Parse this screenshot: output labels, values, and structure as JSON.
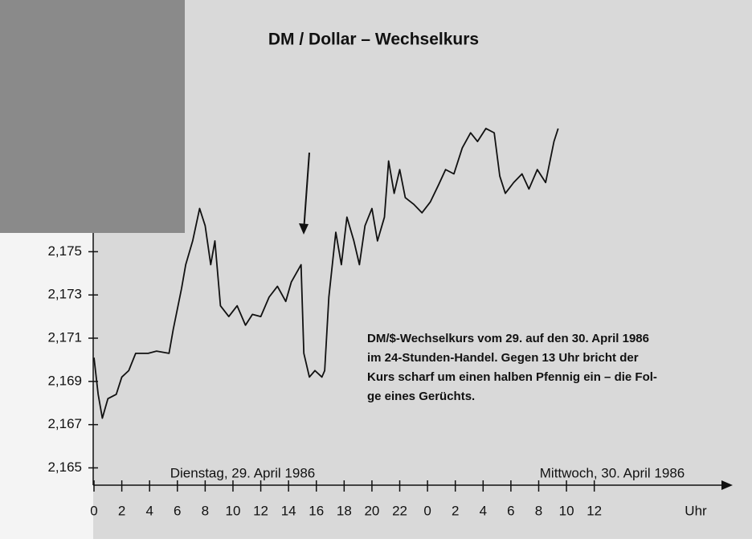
{
  "chart_data": {
    "type": "line",
    "title": "DM / Dollar – Wechselkurs",
    "x_label": "Uhr",
    "annotations": [
      "Dienstag, 29. April 1986",
      "Mittwoch, 30. April 1986"
    ],
    "caption": [
      "DM/$-Wechselkurs vom 29. auf den 30. April 1986",
      "im 24-Stunden-Handel. Gegen 13 Uhr bricht der",
      "Kurs scharf um einen halben Pfennig ein – die Fol-",
      "ge eines Gerüchts."
    ],
    "color": "#111111",
    "xlim": [
      0,
      45.5
    ],
    "ylim": [
      2.1642,
      2.182
    ],
    "xticks": [
      0,
      2,
      4,
      6,
      8,
      10,
      12,
      14,
      16,
      18,
      20,
      22,
      {
        "value": 24,
        "label": "0"
      },
      {
        "value": 26,
        "label": "2"
      },
      {
        "value": 28,
        "label": "4"
      },
      {
        "value": 30,
        "label": "6"
      },
      {
        "value": 32,
        "label": "8"
      },
      {
        "value": 34,
        "label": "10"
      },
      {
        "value": 36,
        "label": "12"
      }
    ],
    "yticks": [
      {
        "value": 2.165,
        "label": "2,165"
      },
      {
        "value": 2.167,
        "label": "2,167"
      },
      {
        "value": 2.169,
        "label": "2,169"
      },
      {
        "value": 2.171,
        "label": "2,171"
      },
      {
        "value": 2.173,
        "label": "2,173"
      },
      {
        "value": 2.175,
        "label": "2,175"
      }
    ],
    "x": [
      0,
      0.3,
      0.6,
      1.0,
      1.6,
      2.0,
      2.5,
      3.0,
      3.4,
      3.9,
      4.5,
      5.4,
      5.7,
      6.3,
      6.6,
      7.1,
      7.6,
      8.0,
      8.4,
      8.7,
      9.1,
      9.7,
      10.3,
      10.9,
      11.4,
      12.0,
      12.6,
      13.2,
      13.8,
      14.2,
      14.9,
      15.1,
      15.5,
      15.9,
      16.4,
      16.6,
      16.9,
      17.4,
      17.8,
      18.2,
      18.7,
      19.1,
      19.5,
      20.0,
      20.4,
      20.9,
      21.2,
      21.6,
      22.0,
      22.4,
      23.0,
      23.6,
      24.2,
      24.8,
      25.3,
      25.9,
      26.5,
      27.1,
      27.6,
      28.2,
      28.8,
      29.2,
      29.6,
      30.2,
      30.8,
      31.3,
      31.9,
      32.5,
      33.1,
      33.4
    ],
    "values": [
      2.1701,
      2.1684,
      2.1673,
      2.1682,
      2.1684,
      2.1692,
      2.1695,
      2.1703,
      2.1703,
      2.1703,
      2.1704,
      2.1703,
      2.1714,
      2.1733,
      2.1744,
      2.1755,
      2.177,
      2.1762,
      2.1744,
      2.1755,
      2.1725,
      2.172,
      2.1725,
      2.1716,
      2.1721,
      2.172,
      2.1729,
      2.1734,
      2.1727,
      2.1736,
      2.1744,
      2.1703,
      2.1692,
      2.1695,
      2.1692,
      2.1695,
      2.1729,
      2.1759,
      2.1744,
      2.1766,
      2.1755,
      2.1744,
      2.1762,
      2.177,
      2.1755,
      2.1766,
      2.1792,
      2.1777,
      2.1788,
      2.1775,
      2.1772,
      2.1768,
      2.1773,
      2.1781,
      2.1788,
      2.1786,
      2.1798,
      2.1805,
      2.1801,
      2.1807,
      2.1805,
      2.1785,
      2.1777,
      2.1782,
      2.1786,
      2.1779,
      2.1788,
      2.1782,
      2.1801,
      2.1807
    ]
  }
}
